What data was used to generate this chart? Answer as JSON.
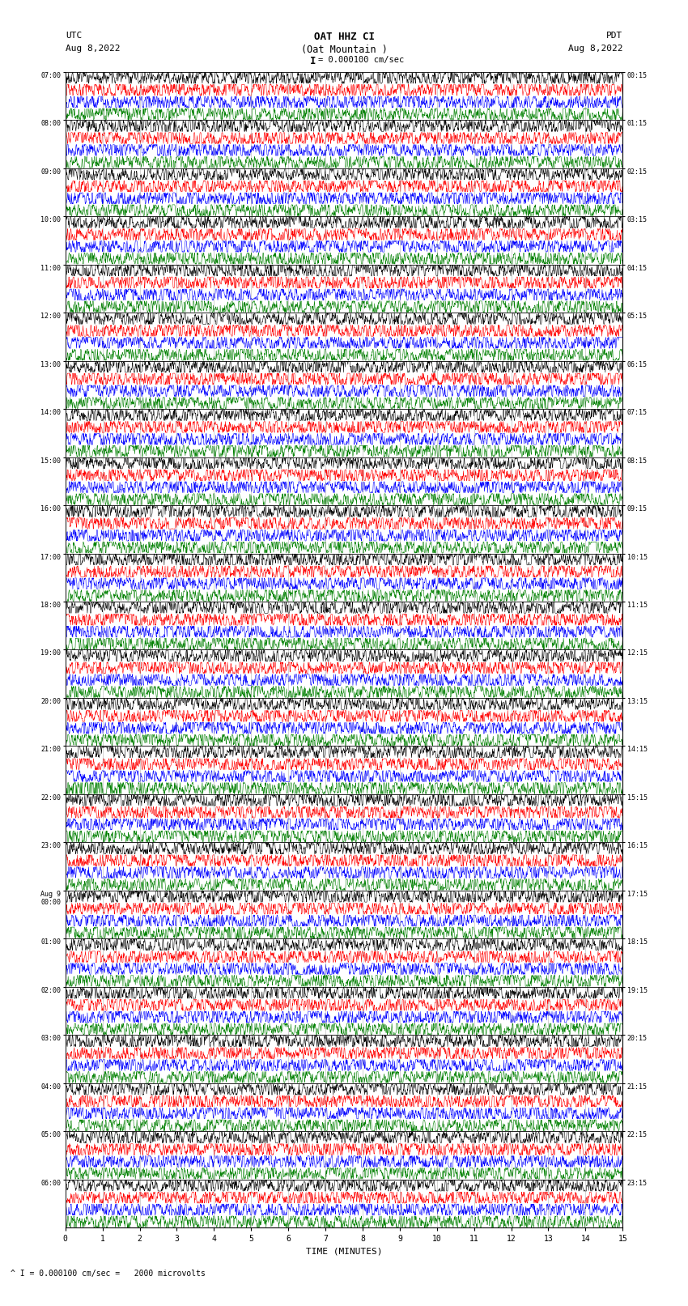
{
  "title_line1": "OAT HHZ CI",
  "title_line2": "(Oat Mountain )",
  "scale_label": "= 0.000100 cm/sec",
  "utc_label": "UTC",
  "utc_date": "Aug 8,2022",
  "pdt_label": "PDT",
  "pdt_date": "Aug 8,2022",
  "xlabel": "TIME (MINUTES)",
  "bottom_note": "^ I = 0.000100 cm/sec =   2000 microvolts",
  "left_times": [
    "07:00",
    "08:00",
    "09:00",
    "10:00",
    "11:00",
    "12:00",
    "13:00",
    "14:00",
    "15:00",
    "16:00",
    "17:00",
    "18:00",
    "19:00",
    "20:00",
    "21:00",
    "22:00",
    "23:00",
    "Aug 9\n00:00",
    "01:00",
    "02:00",
    "03:00",
    "04:00",
    "05:00",
    "06:00"
  ],
  "right_times": [
    "00:15",
    "01:15",
    "02:15",
    "03:15",
    "04:15",
    "05:15",
    "06:15",
    "07:15",
    "08:15",
    "09:15",
    "10:15",
    "11:15",
    "12:15",
    "13:15",
    "14:15",
    "15:15",
    "16:15",
    "17:15",
    "18:15",
    "19:15",
    "20:15",
    "21:15",
    "22:15",
    "23:15"
  ],
  "n_rows": 24,
  "traces_per_row": 4,
  "colors": [
    "black",
    "red",
    "blue",
    "green"
  ],
  "fig_width": 8.5,
  "fig_height": 16.13,
  "bg_color": "white",
  "earthquake_row": 14,
  "earthquake_trace": 2,
  "x_tick_positions": [
    0,
    1,
    2,
    3,
    4,
    5,
    6,
    7,
    8,
    9,
    10,
    11,
    12,
    13,
    14,
    15
  ],
  "x_tick_labels": [
    "0",
    "1",
    "2",
    "3",
    "4",
    "5",
    "6",
    "7",
    "8",
    "9",
    "10",
    "11",
    "12",
    "13",
    "14",
    "15"
  ]
}
